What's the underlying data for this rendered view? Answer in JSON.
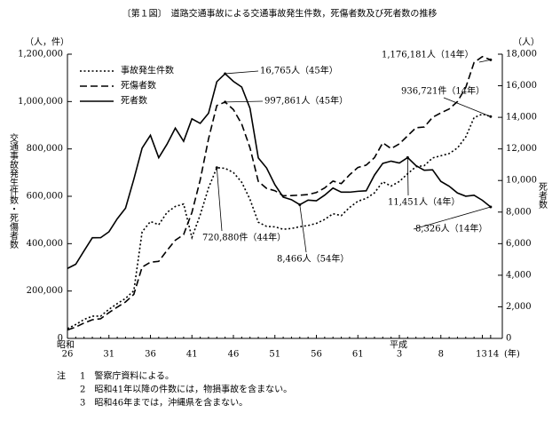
{
  "chart_data": {
    "type": "line",
    "title": "〔第１図〕　道路交通事故による交通事故発生件数，死傷者数及び死者数の推移",
    "y_unit": "（人，件）",
    "y2_unit": "（人）",
    "ylabel": "交通事故発生件数・死傷者数",
    "y2label": "死者数",
    "era_labels": [
      "昭和",
      "平成"
    ],
    "x_unit": "(年)",
    "categories": [
      "26",
      null,
      null,
      null,
      null,
      "31",
      null,
      null,
      null,
      null,
      "36",
      null,
      null,
      null,
      null,
      "41",
      null,
      null,
      null,
      null,
      "46",
      null,
      null,
      null,
      null,
      "51",
      null,
      null,
      null,
      null,
      "56",
      null,
      null,
      null,
      null,
      "61",
      null,
      null,
      null,
      null,
      "3",
      null,
      null,
      null,
      null,
      "8",
      null,
      null,
      null,
      null,
      "13",
      "14"
    ],
    "series": [
      {
        "name": "事故発生件数",
        "color": "#000000",
        "linestyle": "dotted",
        "values": [
          41423,
          58487,
          80019,
          93869,
          93981,
          122691,
          146833,
          168799,
          201292,
          449917,
          493693,
          479825,
          531966,
          557183,
          567286,
          425944,
          521481,
          635056,
          720880,
          718080,
          700290,
          659283,
          586713,
          490452,
          472938,
          471041,
          460649,
          464037,
          471573,
          476677,
          485578,
          502261,
          526362,
          518642,
          552788,
          579190,
          590723,
          614481,
          661363,
          643097,
          662388,
          695346,
          724675,
          729461,
          761794,
          771085,
          780399,
          803882,
          850363,
          931934,
          947169,
          936721
        ]
      },
      {
        "name": "死傷者数",
        "color": "#000000",
        "linestyle": "dashed",
        "values": [
          35703,
          48017,
          64824,
          78764,
          82880,
          108823,
          132105,
          153680,
          186030,
          301211,
          321562,
          325258,
          371390,
          414435,
          438150,
          531679,
          668995,
          842327,
          983257,
          997861,
          965967,
          905116,
          804522,
          662852,
          633259,
          623691,
          602156,
          602899,
          604748,
          607479,
          616065,
          635265,
          664342,
          653583,
          690607,
          721647,
          731526,
          763189,
          825918,
          801522,
          821354,
          855454,
          889575,
          892372,
          933356,
          952145,
          968565,
          999886,
          1059405,
          1164763,
          1189786,
          1176181
        ]
      },
      {
        "name": "死者数",
        "color": "#000000",
        "linestyle": "solid",
        "axis": "y2",
        "values": [
          4429,
          4696,
          5544,
          6374,
          6379,
          6751,
          7575,
          8248,
          10079,
          12055,
          12865,
          11445,
          12301,
          13318,
          12484,
          13904,
          13618,
          14256,
          16257,
          16765,
          16278,
          15918,
          14574,
          11432,
          10792,
          9734,
          8945,
          8783,
          8466,
          8760,
          8719,
          9073,
          9520,
          9262,
          9261,
          9317,
          9347,
          10344,
          11086,
          11227,
          11109,
          11451,
          10942,
          10649,
          10679,
          9942,
          9640,
          9211,
          9006,
          9066,
          8747,
          8326
        ]
      }
    ],
    "ylim": [
      0,
      1200000
    ],
    "yticks": [
      0,
      {
        "value": 200000,
        "label": "200,000"
      },
      {
        "value": 400000,
        "label": "400,000"
      },
      {
        "value": 600000,
        "label": "600,000"
      },
      {
        "value": 800000,
        "label": "800,000"
      },
      {
        "value": 1000000,
        "label": "1,000,000"
      },
      {
        "value": 1200000,
        "label": "1,200,000"
      }
    ],
    "y2lim": [
      0,
      18000
    ],
    "y2ticks": [
      0,
      {
        "value": 2000,
        "label": "2,000"
      },
      {
        "value": 4000,
        "label": "4,000"
      },
      {
        "value": 6000,
        "label": "6,000"
      },
      {
        "value": 8000,
        "label": "8,000"
      },
      {
        "value": 10000,
        "label": "10,000"
      },
      {
        "value": 12000,
        "label": "12,000"
      },
      {
        "value": 14000,
        "label": "14,000"
      },
      {
        "value": 16000,
        "label": "16,000"
      },
      {
        "value": 18000,
        "label": "18,000"
      }
    ],
    "legend": "upper left",
    "annotations": [
      "16,765人（45年）",
      "997,861人（45年）",
      "720,880件（44年）",
      "8,466人（54年）",
      "1,176,181人（14年）",
      "936,721件（14年）",
      "11,451人（4年）",
      "8,326人（14年）"
    ],
    "note_heading": "注",
    "notes": [
      "1　警察庁資料による。",
      "2　昭和41年以降の件数には，物損事故を含まない。",
      "3　昭和46年までは，沖縄県を含まない。"
    ]
  }
}
